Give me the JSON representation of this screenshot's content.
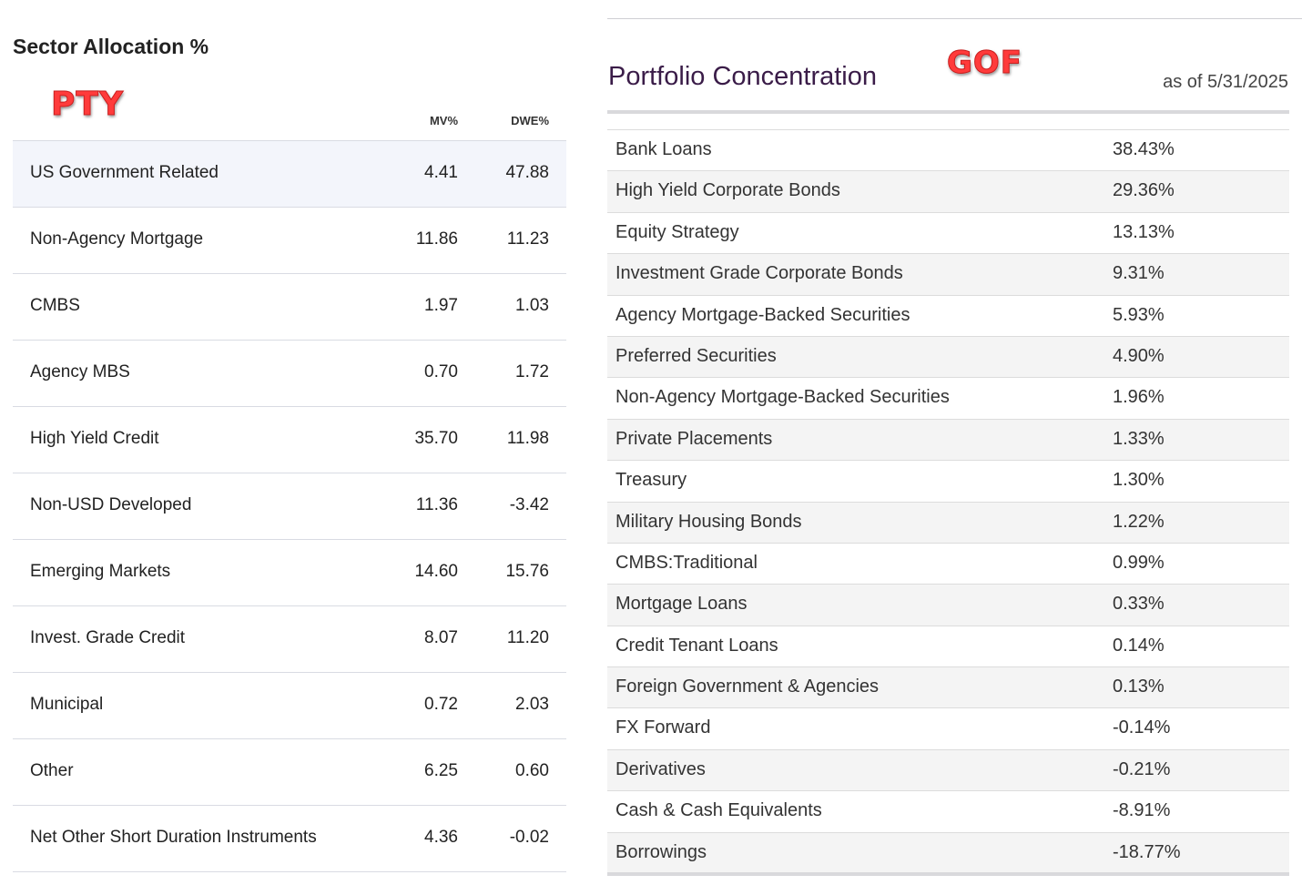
{
  "left": {
    "title": "Sector Allocation %",
    "stamp": "PTY",
    "columns": {
      "mv": "MV%",
      "dwe": "DWE%"
    },
    "rows": [
      {
        "label": "US Government Related",
        "mv": "4.41",
        "dwe": "47.88"
      },
      {
        "label": "Non-Agency Mortgage",
        "mv": "11.86",
        "dwe": "11.23"
      },
      {
        "label": "CMBS",
        "mv": "1.97",
        "dwe": "1.03"
      },
      {
        "label": "Agency MBS",
        "mv": "0.70",
        "dwe": "1.72"
      },
      {
        "label": "High Yield Credit",
        "mv": "35.70",
        "dwe": "11.98"
      },
      {
        "label": "Non-USD Developed",
        "mv": "11.36",
        "dwe": "-3.42"
      },
      {
        "label": "Emerging Markets",
        "mv": "14.60",
        "dwe": "15.76"
      },
      {
        "label": "Invest. Grade Credit",
        "mv": "8.07",
        "dwe": "11.20"
      },
      {
        "label": "Municipal",
        "mv": "0.72",
        "dwe": "2.03"
      },
      {
        "label": "Other",
        "mv": "6.25",
        "dwe": "0.60"
      },
      {
        "label": "Net Other Short Duration Instruments",
        "mv": "4.36",
        "dwe": "-0.02"
      }
    ]
  },
  "right": {
    "title": "Portfolio Concentration",
    "stamp": "GOF",
    "as_of": "as of 5/31/2025",
    "rows": [
      {
        "label": "Bank Loans",
        "value": "38.43%"
      },
      {
        "label": "High Yield Corporate Bonds",
        "value": "29.36%"
      },
      {
        "label": "Equity Strategy",
        "value": "13.13%"
      },
      {
        "label": "Investment Grade Corporate Bonds",
        "value": "9.31%"
      },
      {
        "label": "Agency Mortgage-Backed Securities",
        "value": "5.93%"
      },
      {
        "label": "Preferred Securities",
        "value": "4.90%"
      },
      {
        "label": "Non-Agency Mortgage-Backed Securities",
        "value": "1.96%"
      },
      {
        "label": "Private Placements",
        "value": "1.33%"
      },
      {
        "label": "Treasury",
        "value": "1.30%"
      },
      {
        "label": "Military Housing Bonds",
        "value": "1.22%"
      },
      {
        "label": "CMBS:Traditional",
        "value": "0.99%"
      },
      {
        "label": "Mortgage Loans",
        "value": "0.33%"
      },
      {
        "label": "Credit Tenant Loans",
        "value": "0.14%"
      },
      {
        "label": "Foreign Government & Agencies",
        "value": "0.13%"
      },
      {
        "label": "FX Forward",
        "value": "-0.14%"
      },
      {
        "label": "Derivatives",
        "value": "-0.21%"
      },
      {
        "label": "Cash & Cash Equivalents",
        "value": "-8.91%"
      },
      {
        "label": "Borrowings",
        "value": "-18.77%"
      }
    ]
  },
  "colors": {
    "stamp": "#ff3b3b",
    "right_title": "#3a1c48",
    "highlight_row": "#f3f5fb",
    "alt_row": "#f4f4f4"
  }
}
